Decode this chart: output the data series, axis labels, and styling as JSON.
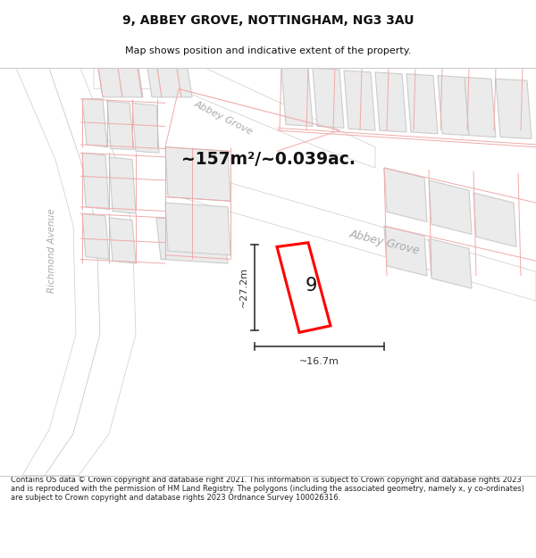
{
  "title": "9, ABBEY GROVE, NOTTINGHAM, NG3 3AU",
  "subtitle": "Map shows position and indicative extent of the property.",
  "footer": "Contains OS data © Crown copyright and database right 2021. This information is subject to Crown copyright and database rights 2023 and is reproduced with the permission of HM Land Registry. The polygons (including the associated geometry, namely x, y co-ordinates) are subject to Crown copyright and database rights 2023 Ordnance Survey 100026316.",
  "area_label": "~157m²/~0.039ac.",
  "width_label": "~16.7m",
  "height_label": "~27.2m",
  "parcel_number": "9",
  "map_bg": "#f7f7f7",
  "road_fill": "#ffffff",
  "block_fill": "#ebebeb",
  "block_edge": "#cccccc",
  "pink_line": "#f0aaaa",
  "red_parcel": "#ff0000",
  "label_gray": "#aaaaaa",
  "dim_color": "#333333",
  "title_color": "#111111",
  "foot_color": "#222222"
}
